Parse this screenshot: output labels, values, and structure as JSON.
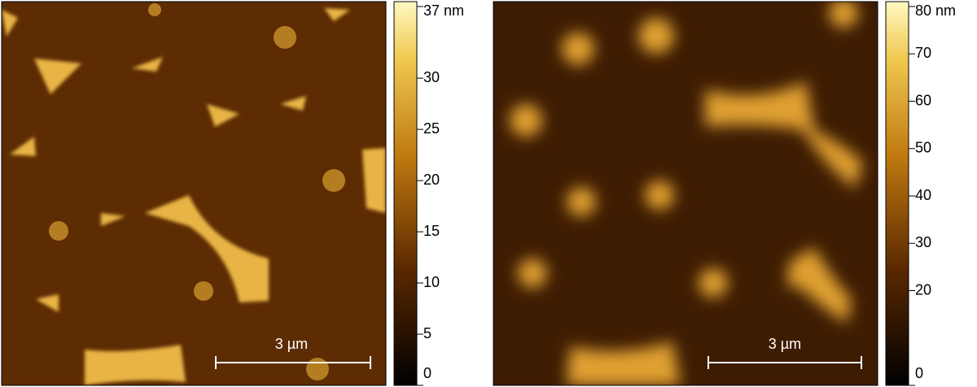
{
  "panels": [
    {
      "scale_bar": "3 µm",
      "colorbar": {
        "range": [
          0,
          37
        ],
        "ticks": [
          0,
          5,
          10,
          15,
          20,
          25,
          30,
          {
            "value": 37,
            "label": "37 nm"
          }
        ]
      }
    },
    {
      "scale_bar": "3 µm",
      "colorbar": {
        "range": [
          0,
          80
        ],
        "ticks": [
          0,
          20,
          30,
          40,
          50,
          60,
          70,
          {
            "value": 80,
            "label": "80 nm"
          }
        ]
      }
    }
  ]
}
